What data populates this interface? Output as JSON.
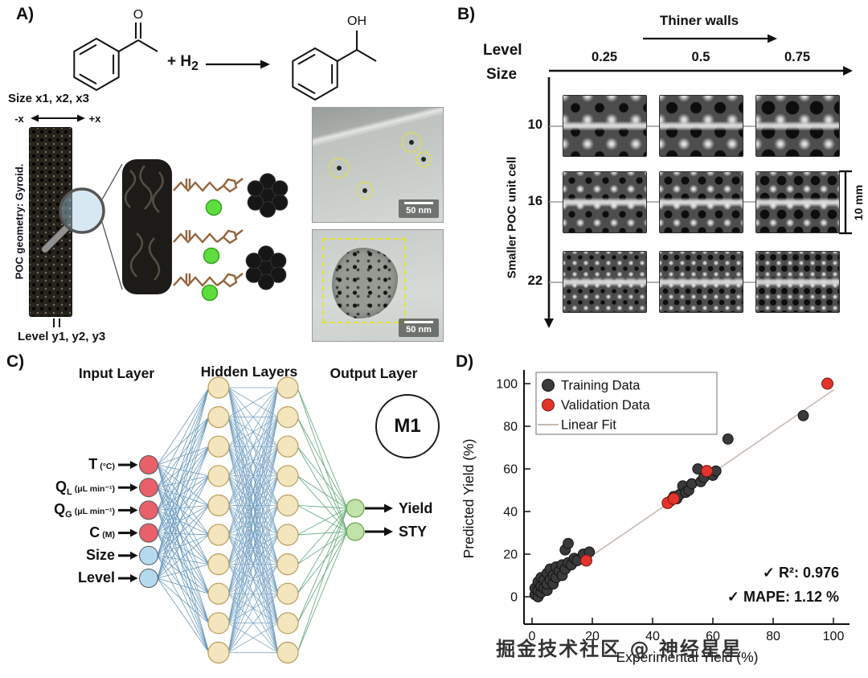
{
  "watermark": "掘金技术社区 @ 神经星星",
  "panelA": {
    "label": "A)",
    "reaction": {
      "o_label": "O",
      "oh_label": "OH",
      "plus_h": "+ H",
      "h_sub": "2"
    },
    "size_label": "Size x1, x2, x3",
    "minus_x": "-x",
    "plus_x": "+x",
    "geometry_label": "POC geometry: Gyroid.",
    "level_label": "Level y1, y2, y3",
    "tem1_scale": "50 nm",
    "tem2_scale": "50 nm"
  },
  "panelB": {
    "label": "B)",
    "top_arrow_label": "Thiner walls",
    "level_label": "Level",
    "size_label": "Size",
    "side_arrow_label": "Smaller POC unit cell",
    "columns": [
      "0.25",
      "0.5",
      "0.75"
    ],
    "rows": [
      "10",
      "16",
      "22"
    ],
    "scale_bar_label": "10 mm"
  },
  "panelC": {
    "label": "C)",
    "headers": {
      "input": "Input Layer",
      "hidden": "Hidden Layers",
      "output": "Output Layer"
    },
    "model_label": "M1",
    "inputs": [
      {
        "name": "T",
        "sub": "",
        "unit": "(°C)",
        "color": "#e8606a"
      },
      {
        "name": "Q",
        "sub": "L",
        "unit": "(μL min⁻¹)",
        "color": "#e8606a"
      },
      {
        "name": "Q",
        "sub": "G",
        "unit": "(μL min⁻¹)",
        "color": "#e8606a"
      },
      {
        "name": "C",
        "sub": "",
        "unit": "(M)",
        "color": "#e8606a"
      },
      {
        "name": "Size",
        "sub": "",
        "unit": "",
        "color": "#b5daf0"
      },
      {
        "name": "Level",
        "sub": "",
        "unit": "",
        "color": "#b5daf0"
      }
    ],
    "outputs": [
      "Yield",
      "STY"
    ],
    "hidden_nodes_per_layer": 10,
    "colors": {
      "hidden": "#f3e5bd",
      "output": "#bfe3a8",
      "edge_blue": "#3c79a8",
      "edge_green": "#53a06b"
    }
  },
  "panelD": {
    "label": "D)",
    "chart_data": {
      "type": "scatter",
      "title": "",
      "xlabel": "Experimental Yield (%)",
      "ylabel": "Predicted Yield (%)",
      "xlim": [
        -5,
        105
      ],
      "ylim": [
        -5,
        105
      ],
      "xticks": [
        0,
        20,
        40,
        60,
        80,
        100
      ],
      "yticks": [
        0,
        20,
        40,
        60,
        80,
        100
      ],
      "grid": false,
      "legend_position": "upper left",
      "legend": [
        "Training Data",
        "Validation Data",
        "Linear Fit"
      ],
      "annotations": [
        "✓ R²: 0.976",
        "✓ MAPE: 1.12 %"
      ],
      "series": [
        {
          "name": "Training Data",
          "color": "#3a3a3a",
          "points": [
            [
              1,
              1
            ],
            [
              1,
              4
            ],
            [
              2,
              0
            ],
            [
              2,
              3
            ],
            [
              2,
              7
            ],
            [
              3,
              2
            ],
            [
              3,
              5
            ],
            [
              3,
              9
            ],
            [
              4,
              4
            ],
            [
              4,
              8
            ],
            [
              5,
              3
            ],
            [
              5,
              6
            ],
            [
              5,
              11
            ],
            [
              6,
              8
            ],
            [
              6,
              13
            ],
            [
              7,
              6
            ],
            [
              7,
              10
            ],
            [
              8,
              9
            ],
            [
              8,
              14
            ],
            [
              9,
              12
            ],
            [
              10,
              10
            ],
            [
              10,
              15
            ],
            [
              11,
              13
            ],
            [
              11,
              22
            ],
            [
              12,
              16
            ],
            [
              12,
              25
            ],
            [
              13,
              15
            ],
            [
              14,
              18
            ],
            [
              15,
              17
            ],
            [
              17,
              20
            ],
            [
              19,
              21
            ],
            [
              46,
              45
            ],
            [
              47,
              47
            ],
            [
              48,
              46
            ],
            [
              49,
              48
            ],
            [
              50,
              52
            ],
            [
              51,
              49
            ],
            [
              52,
              50
            ],
            [
              53,
              53
            ],
            [
              55,
              60
            ],
            [
              56,
              54
            ],
            [
              57,
              56
            ],
            [
              60,
              57
            ],
            [
              61,
              59
            ],
            [
              65,
              74
            ],
            [
              90,
              85
            ]
          ]
        },
        {
          "name": "Validation Data",
          "color": "#e2342b",
          "points": [
            [
              18,
              17
            ],
            [
              45,
              44
            ],
            [
              47,
              46
            ],
            [
              58,
              59
            ],
            [
              98,
              100
            ]
          ]
        },
        {
          "name": "Linear Fit",
          "color": "#c8bab2",
          "line": [
            [
              0,
              0
            ],
            [
              100,
              97
            ]
          ]
        }
      ]
    }
  }
}
